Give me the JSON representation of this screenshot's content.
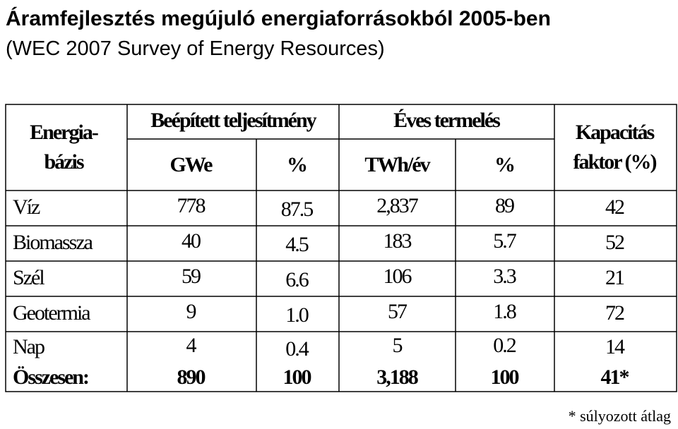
{
  "header": {
    "title": "Áramfejlesztés megújuló energiaforrásokból 2005-ben",
    "subtitle": "(WEC 2007 Survey of Energy Resources)"
  },
  "table": {
    "columns": {
      "source": [
        "Energia-",
        "bázis"
      ],
      "capacity": "Beépített teljesítmény",
      "production": "Éves termelés",
      "capacity_factor": [
        "Kapacitás",
        "faktor (%)"
      ],
      "units": [
        "GWe",
        "%",
        "TWh/év",
        "%"
      ]
    },
    "rows": [
      [
        "Víz",
        "778",
        "87.5",
        "2,837",
        "89",
        "42"
      ],
      [
        "Biomassza",
        "40",
        "4.5",
        "183",
        "5.7",
        "52"
      ],
      [
        "Szél",
        "59",
        "6.6",
        "106",
        "3.3",
        "21"
      ],
      [
        "Geotermia",
        "9",
        "1.0",
        "57",
        "1.8",
        "72"
      ],
      [
        "Nap",
        "4",
        "0.4",
        "5",
        "0.2",
        "14"
      ]
    ],
    "total": [
      "Összesen:",
      "890",
      "100",
      "3,188",
      "100",
      "41*"
    ]
  },
  "footnote": "* súlyozott átlag"
}
